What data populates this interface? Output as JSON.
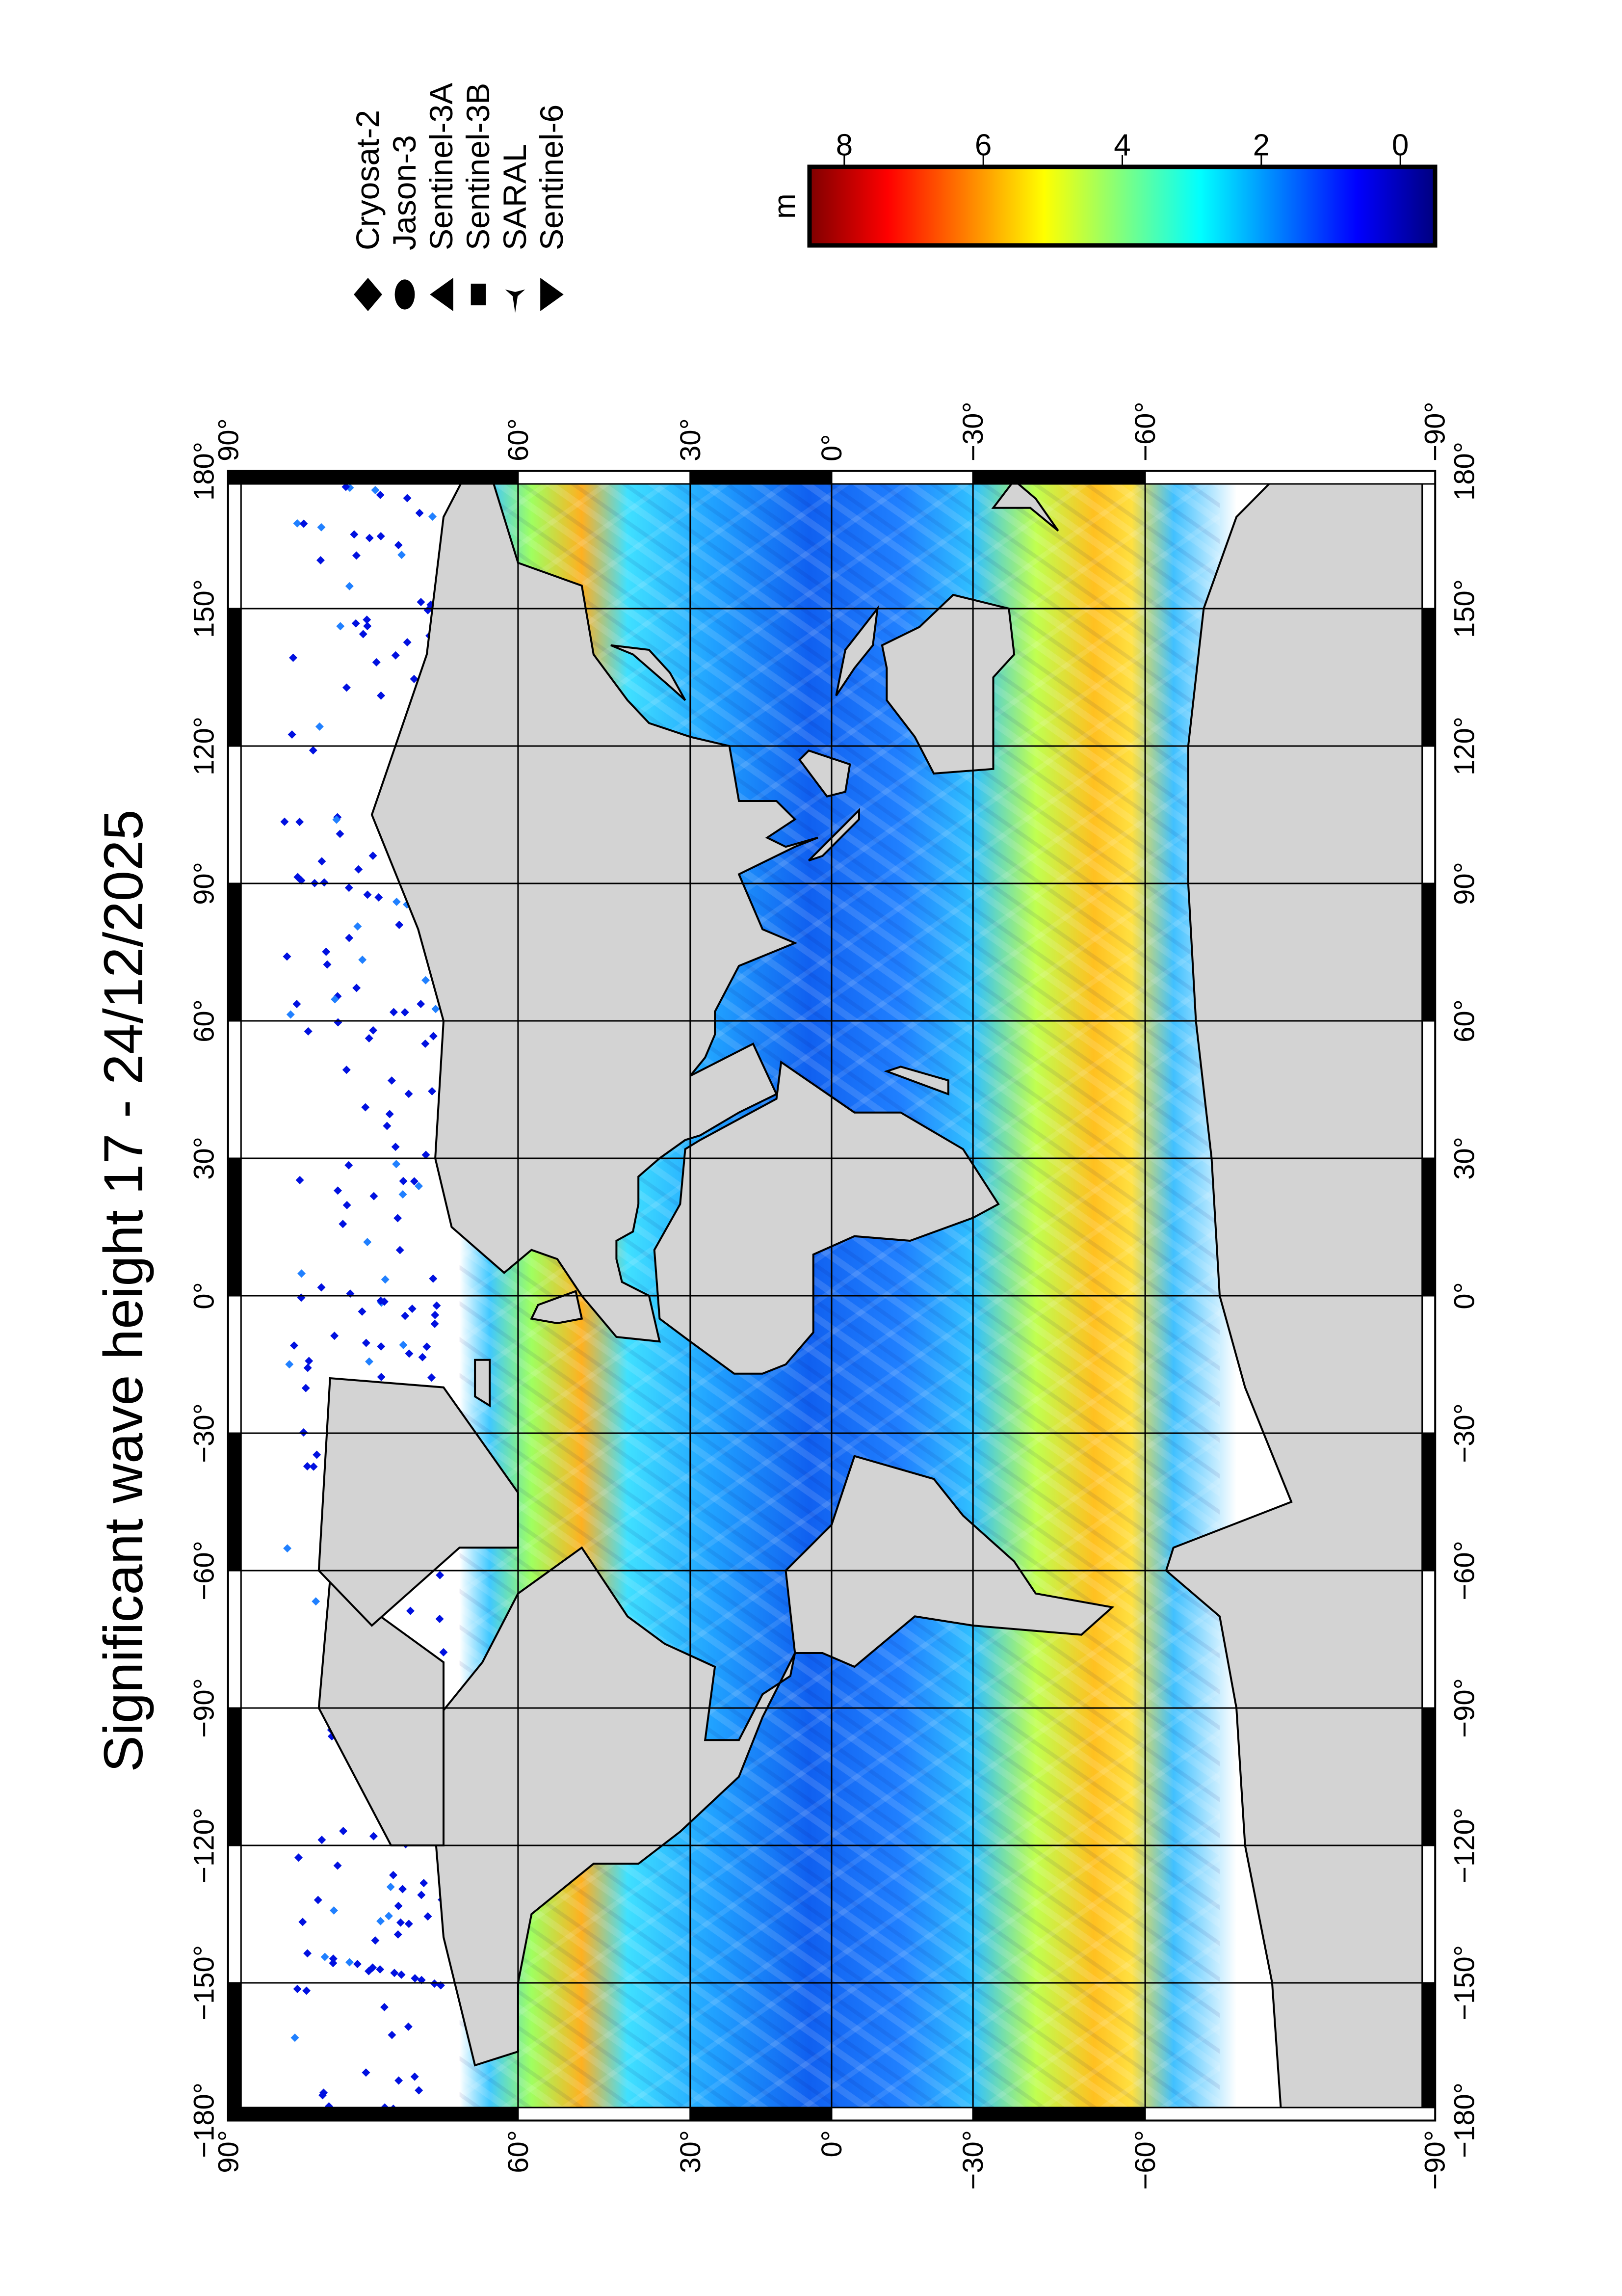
{
  "title": "Significant wave height 17 - 24/12/2025",
  "chart_data": {
    "type": "map",
    "projection": "Miller cylindrical",
    "title": "Significant wave height 17 - 24/12/2025",
    "lon_ticks": [
      -180,
      -150,
      -120,
      -90,
      -60,
      -30,
      0,
      30,
      60,
      90,
      120,
      150,
      180
    ],
    "lon_tick_labels": [
      "−180°",
      "−150°",
      "−120°",
      "−90°",
      "−60°",
      "−30°",
      "0°",
      "30°",
      "60°",
      "90°",
      "120°",
      "150°",
      "180°"
    ],
    "lat_ticks": [
      90,
      60,
      30,
      0,
      -30,
      -60,
      -90
    ],
    "lat_tick_labels": [
      "90°",
      "60°",
      "30°",
      "0°",
      "−30°",
      "−60°",
      "−90°"
    ],
    "lon_range": [
      -180,
      180
    ],
    "lat_range": [
      -90,
      90
    ],
    "grid": true,
    "land_color": "#d3d3d3",
    "colorbar": {
      "label": "m",
      "ticks": [
        8,
        6,
        4,
        2,
        0
      ],
      "tick_labels": [
        "8",
        "6",
        "4",
        "2",
        "0"
      ],
      "range": [
        -0.5,
        8.5
      ],
      "colormap": "jet",
      "colors": [
        "#00007f",
        "#0000ff",
        "#007fff",
        "#00ffff",
        "#7fff7f",
        "#ffff00",
        "#ff7f00",
        "#ff0000",
        "#7f0000"
      ]
    },
    "legend": [
      {
        "label": "Cryosat-2",
        "symbol": "diamond"
      },
      {
        "label": "Jason-3",
        "symbol": "circle"
      },
      {
        "label": "Sentinel-3A",
        "symbol": "triangle-left"
      },
      {
        "label": "Sentinel-3B",
        "symbol": "square"
      },
      {
        "label": "SARAL",
        "symbol": "star"
      },
      {
        "label": "Sentinel-6",
        "symbol": "triangle-right"
      }
    ]
  }
}
